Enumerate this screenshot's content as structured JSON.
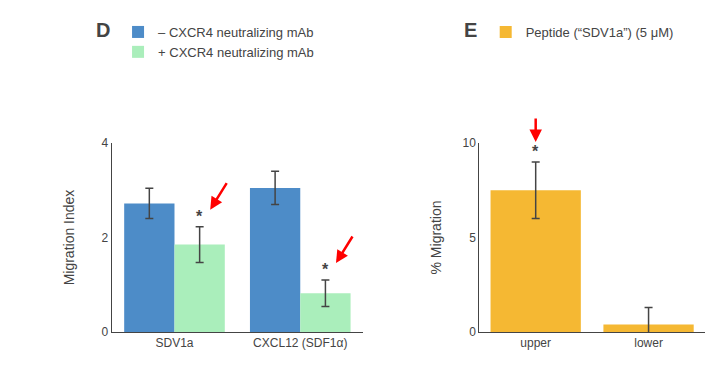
{
  "chart_data": [
    {
      "type": "bar",
      "title": "D",
      "categories": [
        "SDV1a",
        "CXCL12 (SDF1α)"
      ],
      "series": [
        {
          "name": "– CXCR4 neutralizing mAb",
          "color": "#4d8cc8",
          "values": [
            2.72,
            3.05
          ],
          "errors": [
            0.32,
            0.35
          ]
        },
        {
          "name": "+ CXCR4 neutralizing mAb",
          "color": "#aaeebb",
          "values": [
            1.85,
            0.82
          ],
          "errors": [
            0.38,
            0.28
          ]
        }
      ],
      "ylabel": "Migration Index",
      "ylim": [
        0,
        4
      ],
      "yticks": [
        0,
        2,
        4
      ],
      "grid": false,
      "legend": "top left",
      "annotations": [
        {
          "text": "*",
          "category": "SDV1a",
          "series": "+ CXCR4 neutralizing mAb",
          "color": "#ff0000"
        },
        {
          "text": "*",
          "category": "CXCL12 (SDF1α)",
          "series": "+ CXCR4 neutralizing mAb",
          "color": "#ff0000"
        }
      ]
    },
    {
      "type": "bar",
      "title": "E",
      "categories": [
        "upper",
        "lower"
      ],
      "series": [
        {
          "name": "Peptide (“SDV1a”) (5 μM)",
          "color": "#f5b833",
          "values": [
            7.5,
            0.4
          ],
          "errors": [
            1.5,
            0.9
          ]
        }
      ],
      "ylabel": "% Migration",
      "ylim": [
        0,
        10
      ],
      "yticks": [
        0,
        5,
        10
      ],
      "grid": false,
      "legend": "top left",
      "annotations": [
        {
          "text": "*",
          "category": "upper",
          "color": "#ff0000"
        }
      ]
    }
  ]
}
